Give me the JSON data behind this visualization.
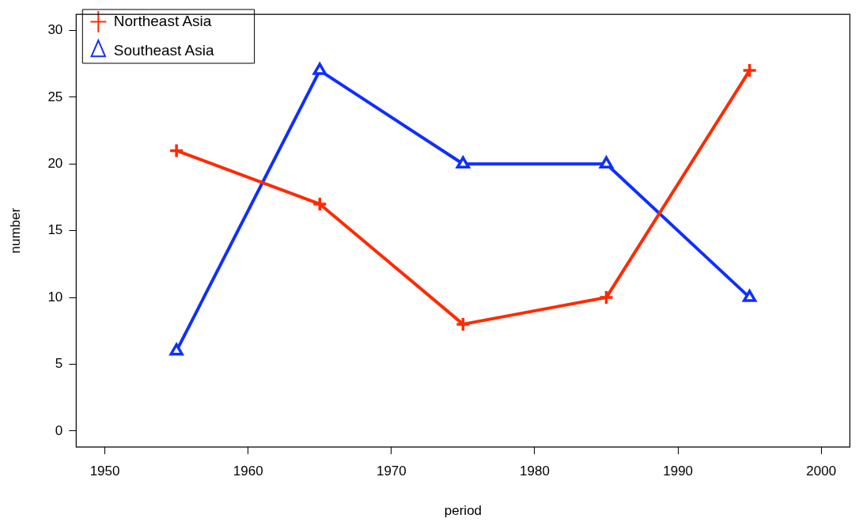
{
  "chart_data": {
    "type": "line",
    "xlabel": "period",
    "ylabel": "number",
    "x": [
      1955,
      1965,
      1975,
      1985,
      1995
    ],
    "series": [
      {
        "name": "Northeast Asia",
        "color": "#ff2a00",
        "marker": "cross",
        "values": [
          21,
          17,
          8,
          10,
          27
        ]
      },
      {
        "name": "Southeast Asia",
        "color": "#0f2fff",
        "marker": "triangle",
        "values": [
          6,
          27,
          20,
          20,
          10
        ]
      }
    ],
    "xlim": [
      1948,
      2002
    ],
    "xticks": [
      1950,
      1960,
      1970,
      1980,
      1990,
      2000
    ],
    "ylim": [
      -1.2,
      31.2
    ],
    "yticks": [
      0,
      5,
      10,
      15,
      20,
      25,
      30
    ],
    "grid": false,
    "legend": "top left"
  }
}
